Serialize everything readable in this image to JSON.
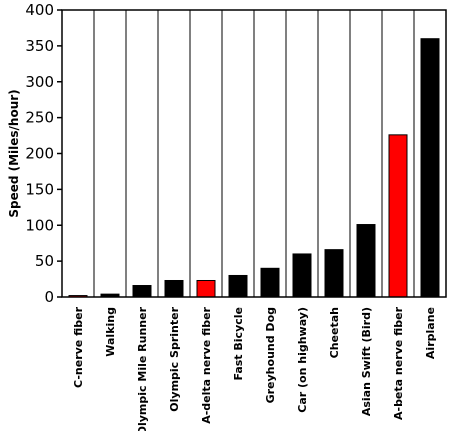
{
  "chart_data": {
    "type": "bar",
    "title": "",
    "xlabel": "",
    "ylabel": "Speed (Miles/hour)",
    "ylim": [
      0,
      400
    ],
    "yticks": [
      0,
      50,
      100,
      150,
      200,
      250,
      300,
      350,
      400
    ],
    "grid": "vertical category dividers",
    "categories": [
      "C-nerve fiber",
      "Walking",
      "Olympic Mile Runner",
      "Olympic Sprinter",
      "A-delta nerve fiber",
      "Fast Bicycle",
      "Greyhound Dog",
      "Car (on highway)",
      "Cheetah",
      "Asian Swift (Bird)",
      "A-beta nerve fiber",
      "Airplane"
    ],
    "values": [
      2,
      4,
      16,
      23,
      23,
      30,
      40,
      60,
      66,
      101,
      226,
      360
    ],
    "bar_colors": [
      "#ff0000",
      "#000000",
      "#000000",
      "#000000",
      "#ff0000",
      "#000000",
      "#000000",
      "#000000",
      "#000000",
      "#000000",
      "#ff0000",
      "#000000"
    ]
  }
}
